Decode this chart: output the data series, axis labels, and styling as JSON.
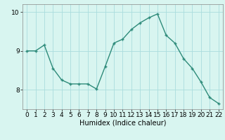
{
  "x": [
    0,
    1,
    2,
    3,
    4,
    5,
    6,
    7,
    8,
    9,
    10,
    11,
    12,
    13,
    14,
    15,
    16,
    17,
    18,
    19,
    20,
    21,
    22
  ],
  "y": [
    9.0,
    9.0,
    9.15,
    8.55,
    8.25,
    8.15,
    8.15,
    8.15,
    8.02,
    8.6,
    9.2,
    9.3,
    9.55,
    9.72,
    9.85,
    9.95,
    9.4,
    9.2,
    8.8,
    8.55,
    8.2,
    7.8,
    7.65
  ],
  "line_color": "#2e8b7a",
  "marker": "+",
  "marker_color": "#2e8b7a",
  "bg_color": "#d8f5f0",
  "grid_color": "#aadddd",
  "xlabel": "Humidex (Indice chaleur)",
  "ylabel": "",
  "xlim": [
    -0.5,
    22.5
  ],
  "ylim": [
    7.5,
    10.2
  ],
  "yticks": [
    8,
    9,
    10
  ],
  "xticks": [
    0,
    1,
    2,
    3,
    4,
    5,
    6,
    7,
    8,
    9,
    10,
    11,
    12,
    13,
    14,
    15,
    16,
    17,
    18,
    19,
    20,
    21,
    22
  ],
  "xlabel_fontsize": 7,
  "tick_fontsize": 6.5,
  "linewidth": 1.0,
  "markersize": 3.5
}
